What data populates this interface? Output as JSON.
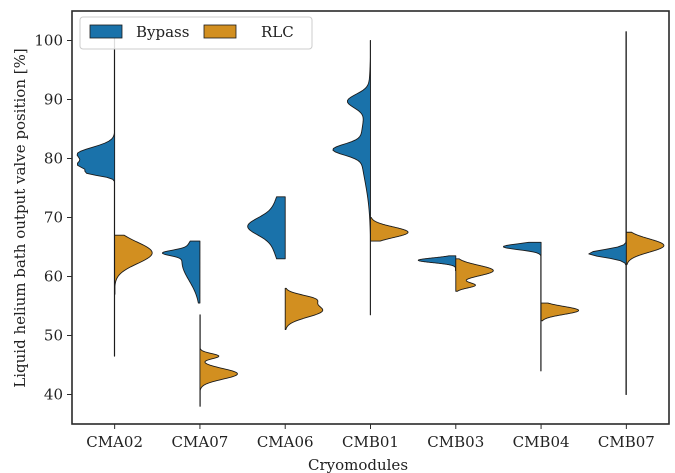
{
  "chart_data": {
    "type": "violin",
    "split": true,
    "title": "",
    "xlabel": "Cryomodules",
    "ylabel": "Liquid helium bath output valve position [%]",
    "categories": [
      "CMA02",
      "CMA07",
      "CMA06",
      "CMB01",
      "CMB03",
      "CMB04",
      "CMB07"
    ],
    "ylim": [
      35,
      105
    ],
    "yticks": [
      40,
      50,
      60,
      70,
      80,
      90,
      100
    ],
    "grid": false,
    "legend": {
      "placement": "upper-left"
    },
    "series": [
      {
        "name": "Bypass",
        "color": "#1a72aa",
        "side": "left",
        "violins": [
          {
            "range": [
              46.5,
              101
            ],
            "mass": [
              [
                78,
                79.5,
                0.75
              ],
              [
                79.5,
                82,
                1.0
              ],
              [
                77,
                78,
                0.6
              ]
            ]
          },
          {
            "range": [
              55.5,
              66
            ],
            "mass": [
              [
                59,
                66,
                0.25
              ],
              [
                63.5,
                64.5,
                0.3
              ]
            ]
          },
          {
            "range": [
              63,
              73.5
            ],
            "mass": [
              [
                63,
                73.5,
                0.4
              ],
              [
                67,
                70,
                0.55
              ]
            ]
          },
          {
            "range": [
              53.5,
              100
            ],
            "mass": [
              [
                80.5,
                82.5,
                1.0
              ],
              [
                88.5,
                91,
                0.7
              ],
              [
                76,
                88,
                0.35
              ]
            ]
          },
          {
            "range": [
              61,
              63.5
            ],
            "mass": [
              [
                62.3,
                63.2,
                1.0
              ]
            ]
          },
          {
            "range": [
              44,
              65.8
            ],
            "mass": [
              [
                64.5,
                65.6,
                1.0
              ]
            ]
          },
          {
            "range": [
              40,
              101.5
            ],
            "mass": [
              [
                63.2,
                64.6,
                0.7
              ]
            ]
          }
        ]
      },
      {
        "name": "RLC",
        "color": "#d28f20",
        "side": "right",
        "violins": [
          {
            "range": [
              57,
              67
            ],
            "mass": [
              [
                62,
                66,
                1.0
              ]
            ]
          },
          {
            "range": [
              38,
              53.5
            ],
            "mass": [
              [
                42.5,
                44.5,
                1.0
              ],
              [
                46,
                47,
                0.5
              ]
            ]
          },
          {
            "range": [
              51,
              58
            ],
            "mass": [
              [
                53,
                55.5,
                1.0
              ],
              [
                55.5,
                57,
                0.6
              ]
            ]
          },
          {
            "range": [
              66,
              70
            ],
            "mass": [
              [
                66.5,
                68.5,
                1.0
              ]
            ]
          },
          {
            "range": [
              57.5,
              63
            ],
            "mass": [
              [
                60,
                62,
                1.0
              ],
              [
                58,
                59,
                0.5
              ]
            ]
          },
          {
            "range": [
              52.5,
              55.5
            ],
            "mass": [
              [
                53.5,
                55,
                1.0
              ]
            ]
          },
          {
            "range": [
              62,
              67.5
            ],
            "mass": [
              [
                64,
                66.5,
                1.0
              ]
            ]
          }
        ]
      }
    ]
  }
}
